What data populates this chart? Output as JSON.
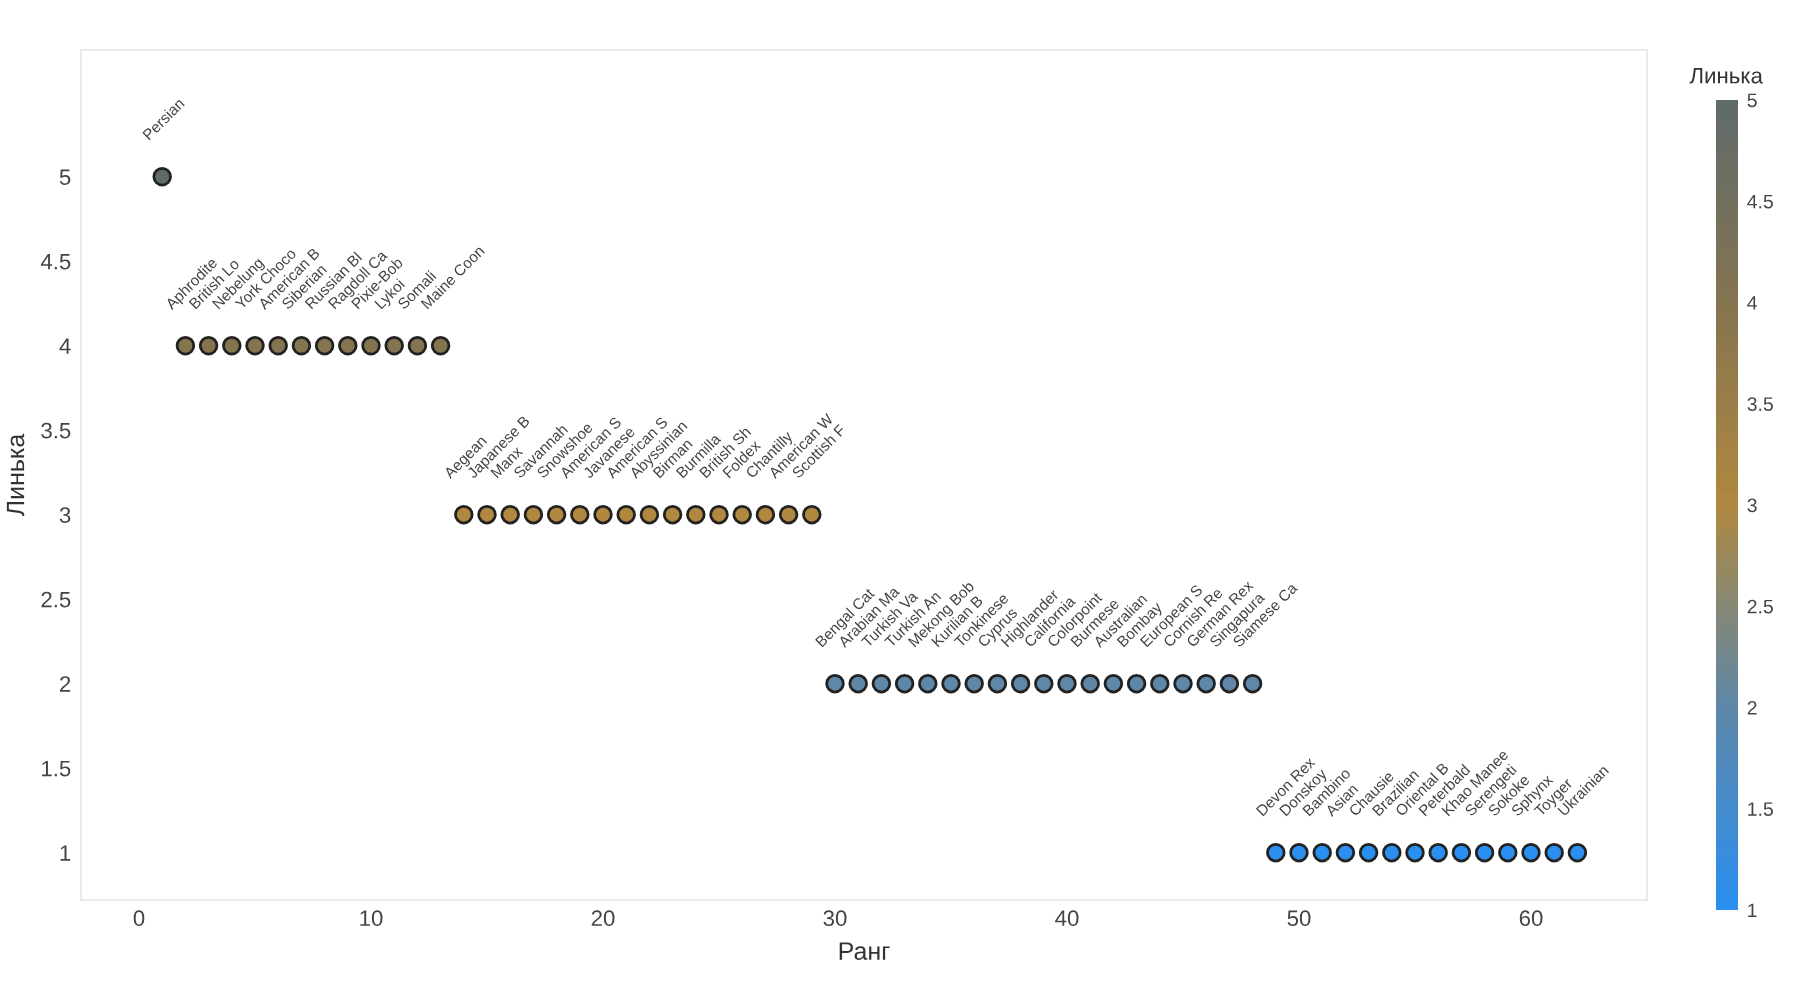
{
  "chart_data": {
    "type": "scatter",
    "xlabel": "Ранг",
    "ylabel": "Линька",
    "clabel": "Линька",
    "x": [
      1,
      2,
      3,
      4,
      5,
      6,
      7,
      8,
      9,
      10,
      11,
      12,
      13,
      14,
      15,
      16,
      17,
      18,
      19,
      20,
      21,
      22,
      23,
      24,
      25,
      26,
      27,
      28,
      29,
      30,
      31,
      32,
      33,
      34,
      35,
      36,
      37,
      38,
      39,
      40,
      41,
      42,
      43,
      44,
      45,
      46,
      47,
      48,
      49,
      50,
      51,
      52,
      53,
      54,
      55,
      56,
      57,
      58,
      59,
      60,
      61,
      62
    ],
    "values": [
      5,
      4,
      4,
      4,
      4,
      4,
      4,
      4,
      4,
      4,
      4,
      4,
      4,
      3,
      3,
      3,
      3,
      3,
      3,
      3,
      3,
      3,
      3,
      3,
      3,
      3,
      3,
      3,
      3,
      2,
      2,
      2,
      2,
      2,
      2,
      2,
      2,
      2,
      2,
      2,
      2,
      2,
      2,
      2,
      2,
      2,
      2,
      2,
      1,
      1,
      1,
      1,
      1,
      1,
      1,
      1,
      1,
      1,
      1,
      1,
      1,
      1
    ],
    "cvalues": [
      5,
      4,
      4,
      4,
      4,
      4,
      4,
      4,
      4,
      4,
      4,
      4,
      4,
      3,
      3,
      3,
      3,
      3,
      3,
      3,
      3,
      3,
      3,
      3,
      3,
      3,
      3,
      3,
      3,
      2,
      2,
      2,
      2,
      2,
      2,
      2,
      2,
      2,
      2,
      2,
      2,
      2,
      2,
      2,
      2,
      2,
      2,
      2,
      1,
      1,
      1,
      1,
      1,
      1,
      1,
      1,
      1,
      1,
      1,
      1,
      1,
      1
    ],
    "value_labels": [
      "Persian",
      "Aphrodite",
      "British Lo",
      "Nebelung",
      "York Choco",
      "American B",
      "Siberian",
      "Russian Bl",
      "Ragdoll Ca",
      "Pixie-Bob",
      "Lykoi",
      "Somali",
      "Maine Coon",
      "Aegean",
      "Japanese B",
      "Manx",
      "Savannah",
      "Snowshoe",
      "American S",
      "Javanese",
      "American S",
      "Abyssinian",
      "Birman",
      "Burmilla",
      "British Sh",
      "Foldex",
      "Chantilly",
      "American W",
      "Scottish F",
      "Bengal Cat",
      "Arabian Ma",
      "Turkish Va",
      "Turkish An",
      "Mekong Bob",
      "Kurilian B",
      "Tonkinese",
      "Cyprus",
      "Highlander",
      "California",
      "Colorpoint",
      "Burmese",
      "Australian",
      "Bombay",
      "European S",
      "Cornish Re",
      "German Rex",
      "Singapura",
      "Siamese Ca",
      "Devon Rex",
      "Donskoy",
      "Bambino",
      "Asian",
      "Chausie",
      "Brazilian",
      "Oriental B",
      "Peterbald",
      "Khao Manee",
      "Serengeti",
      "Sokoke",
      "Sphynx",
      "Toyger",
      "Ukrainian"
    ],
    "clim": [
      1,
      5
    ],
    "cticks": [
      1,
      1.5,
      2,
      2.5,
      3,
      3.5,
      4,
      4.5,
      5
    ],
    "xlim": [
      -2.5,
      65
    ],
    "xticks": [
      0,
      10,
      20,
      30,
      40,
      50,
      60
    ],
    "ylim": [
      0.72,
      5.75
    ],
    "yticks": [
      1,
      1.5,
      2,
      2.5,
      3,
      3.5,
      4,
      4.5,
      5
    ],
    "marker": "circle",
    "grid": false
  }
}
